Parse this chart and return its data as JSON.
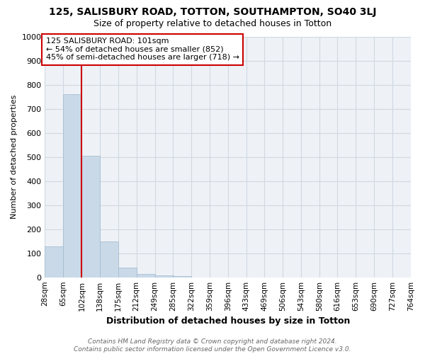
{
  "title": "125, SALISBURY ROAD, TOTTON, SOUTHAMPTON, SO40 3LJ",
  "subtitle": "Size of property relative to detached houses in Totton",
  "xlabel": "Distribution of detached houses by size in Totton",
  "ylabel": "Number of detached properties",
  "bin_labels": [
    "28sqm",
    "65sqm",
    "102sqm",
    "138sqm",
    "175sqm",
    "212sqm",
    "249sqm",
    "285sqm",
    "322sqm",
    "359sqm",
    "396sqm",
    "433sqm",
    "469sqm",
    "506sqm",
    "543sqm",
    "580sqm",
    "616sqm",
    "653sqm",
    "690sqm",
    "727sqm",
    "764sqm"
  ],
  "bin_edges": [
    28,
    65,
    102,
    138,
    175,
    212,
    249,
    285,
    322,
    359,
    396,
    433,
    469,
    506,
    543,
    580,
    616,
    653,
    690,
    727,
    764
  ],
  "bar_heights": [
    128,
    760,
    505,
    150,
    40,
    15,
    8,
    5,
    0,
    0,
    0,
    0,
    0,
    0,
    0,
    0,
    0,
    0,
    0,
    0
  ],
  "bar_color": "#c9d9e8",
  "bar_edgecolor": "#a0b8cc",
  "grid_color": "#d0d8e0",
  "property_line_x": 102,
  "property_line_color": "#cc0000",
  "ylim": [
    0,
    1000
  ],
  "yticks": [
    0,
    100,
    200,
    300,
    400,
    500,
    600,
    700,
    800,
    900,
    1000
  ],
  "annotation_text": "125 SALISBURY ROAD: 101sqm\n← 54% of detached houses are smaller (852)\n45% of semi-detached houses are larger (718) →",
  "annotation_box_color": "#ffffff",
  "annotation_box_edgecolor": "#cc0000",
  "footer_text": "Contains HM Land Registry data © Crown copyright and database right 2024.\nContains public sector information licensed under the Open Government Licence v3.0.",
  "bg_color": "#ffffff",
  "plot_bg_color": "#eef2f7",
  "title_fontsize": 10,
  "subtitle_fontsize": 9,
  "ann_fontsize": 8
}
